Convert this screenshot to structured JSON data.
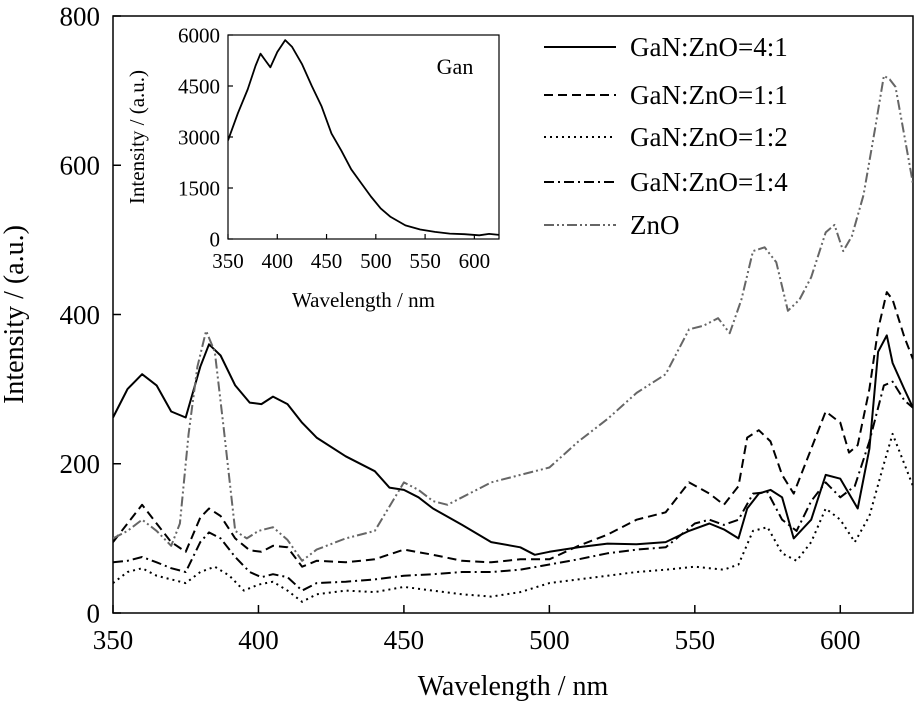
{
  "chart_data": [
    {
      "type": "line",
      "xlabel": "Wavelength / nm",
      "ylabel": "Intensity / (a.u.)",
      "xlim": [
        350,
        625
      ],
      "ylim": [
        0,
        800
      ],
      "xticks": [
        350,
        400,
        450,
        500,
        550,
        600
      ],
      "yticks": [
        0,
        200,
        400,
        600,
        800
      ],
      "legend_position": "top-right",
      "series": [
        {
          "name": "GaN:ZnO=4:1",
          "color": "#000000",
          "dash": "solid",
          "x": [
            350,
            355,
            360,
            365,
            370,
            375,
            380,
            383,
            387,
            392,
            397,
            401,
            405,
            410,
            415,
            420,
            430,
            440,
            445,
            450,
            455,
            460,
            470,
            480,
            490,
            495,
            500,
            510,
            520,
            530,
            540,
            548,
            555,
            560,
            565,
            568,
            572,
            576,
            580,
            584,
            590,
            595,
            600,
            603,
            606,
            610,
            613,
            616,
            618,
            622,
            625
          ],
          "y": [
            262,
            300,
            320,
            305,
            270,
            262,
            330,
            360,
            345,
            305,
            282,
            280,
            290,
            280,
            255,
            235,
            210,
            190,
            168,
            165,
            155,
            140,
            118,
            95,
            88,
            78,
            82,
            88,
            93,
            92,
            95,
            110,
            120,
            112,
            100,
            140,
            160,
            165,
            155,
            100,
            125,
            185,
            180,
            160,
            140,
            220,
            350,
            372,
            335,
            300,
            275
          ]
        },
        {
          "name": "GaN:ZnO=1:1",
          "color": "#000000",
          "dash": "dashed",
          "x": [
            350,
            355,
            360,
            365,
            370,
            375,
            380,
            383,
            387,
            392,
            397,
            401,
            405,
            410,
            415,
            420,
            430,
            440,
            450,
            460,
            470,
            480,
            490,
            500,
            510,
            520,
            530,
            540,
            548,
            555,
            560,
            565,
            568,
            572,
            576,
            580,
            584,
            590,
            595,
            600,
            603,
            606,
            610,
            613,
            616,
            618,
            622,
            625
          ],
          "y": [
            95,
            120,
            145,
            120,
            95,
            82,
            128,
            140,
            130,
            100,
            84,
            82,
            90,
            88,
            62,
            70,
            68,
            72,
            85,
            78,
            70,
            68,
            72,
            72,
            90,
            105,
            125,
            135,
            175,
            160,
            145,
            170,
            235,
            245,
            230,
            185,
            160,
            220,
            270,
            255,
            215,
            225,
            300,
            380,
            430,
            420,
            370,
            340
          ]
        },
        {
          "name": "GaN:ZnO=1:2",
          "color": "#000000",
          "dash": "dotted",
          "x": [
            350,
            355,
            360,
            365,
            370,
            375,
            380,
            385,
            390,
            395,
            400,
            405,
            410,
            415,
            420,
            430,
            440,
            450,
            460,
            470,
            480,
            490,
            500,
            510,
            520,
            530,
            540,
            550,
            555,
            560,
            565,
            570,
            575,
            580,
            585,
            590,
            595,
            600,
            605,
            610,
            615,
            618,
            622,
            625
          ],
          "y": [
            40,
            55,
            60,
            50,
            45,
            40,
            55,
            62,
            50,
            30,
            38,
            42,
            30,
            15,
            25,
            30,
            28,
            35,
            30,
            25,
            22,
            28,
            40,
            45,
            50,
            55,
            58,
            62,
            60,
            58,
            65,
            110,
            115,
            80,
            70,
            95,
            140,
            125,
            95,
            130,
            200,
            240,
            200,
            170
          ]
        },
        {
          "name": "GaN:ZnO=1:4",
          "color": "#000000",
          "dash": "dashdot",
          "x": [
            350,
            355,
            360,
            365,
            370,
            375,
            380,
            383,
            387,
            392,
            397,
            401,
            405,
            410,
            415,
            420,
            430,
            440,
            450,
            460,
            470,
            480,
            490,
            500,
            510,
            520,
            530,
            540,
            550,
            555,
            560,
            565,
            570,
            575,
            580,
            585,
            590,
            595,
            600,
            605,
            610,
            615,
            618,
            622,
            625
          ],
          "y": [
            68,
            70,
            75,
            68,
            60,
            55,
            95,
            108,
            100,
            75,
            55,
            48,
            52,
            48,
            30,
            40,
            42,
            45,
            50,
            52,
            55,
            55,
            58,
            65,
            72,
            80,
            85,
            88,
            120,
            125,
            118,
            125,
            160,
            162,
            125,
            110,
            150,
            175,
            155,
            170,
            230,
            305,
            310,
            285,
            275
          ]
        },
        {
          "name": "ZnO",
          "color": "#666666",
          "dash": "dashdotdot",
          "x": [
            350,
            355,
            360,
            365,
            370,
            373,
            376,
            379,
            382,
            385,
            388,
            392,
            396,
            400,
            405,
            410,
            415,
            420,
            430,
            440,
            450,
            455,
            460,
            465,
            470,
            480,
            490,
            500,
            510,
            520,
            530,
            540,
            548,
            553,
            558,
            562,
            566,
            570,
            574,
            578,
            582,
            586,
            590,
            595,
            598,
            601,
            604,
            608,
            612,
            615,
            617,
            619,
            622,
            625
          ],
          "y": [
            100,
            110,
            125,
            110,
            90,
            120,
            240,
            330,
            378,
            350,
            250,
            110,
            100,
            110,
            115,
            98,
            70,
            85,
            100,
            110,
            175,
            165,
            150,
            145,
            155,
            175,
            185,
            195,
            230,
            260,
            295,
            320,
            380,
            385,
            395,
            375,
            420,
            485,
            490,
            470,
            405,
            420,
            450,
            510,
            520,
            485,
            505,
            560,
            650,
            720,
            715,
            705,
            640,
            575
          ]
        }
      ],
      "inset": {
        "type": "line",
        "title": "Gan",
        "xlabel": "Wavelength / nm",
        "ylabel": "Intensity / (a.u.)",
        "xlim": [
          350,
          625
        ],
        "ylim": [
          0,
          6000
        ],
        "xticks": [
          350,
          400,
          450,
          500,
          550,
          600
        ],
        "yticks": [
          0,
          1500,
          3000,
          4500,
          6000
        ],
        "series": [
          {
            "name": "Gan",
            "color": "#000000",
            "x": [
              350,
              360,
              370,
              378,
              383,
              388,
              393,
              400,
              408,
              415,
              425,
              435,
              445,
              455,
              465,
              475,
              485,
              495,
              505,
              515,
              530,
              545,
              560,
              575,
              590,
              605,
              615,
              625
            ],
            "y": [
              2900,
              3700,
              4400,
              5100,
              5450,
              5250,
              5050,
              5500,
              5850,
              5650,
              5150,
              4500,
              3900,
              3100,
              2600,
              2050,
              1650,
              1250,
              900,
              650,
              400,
              280,
              210,
              160,
              140,
              110,
              150,
              120
            ]
          }
        ]
      }
    }
  ]
}
